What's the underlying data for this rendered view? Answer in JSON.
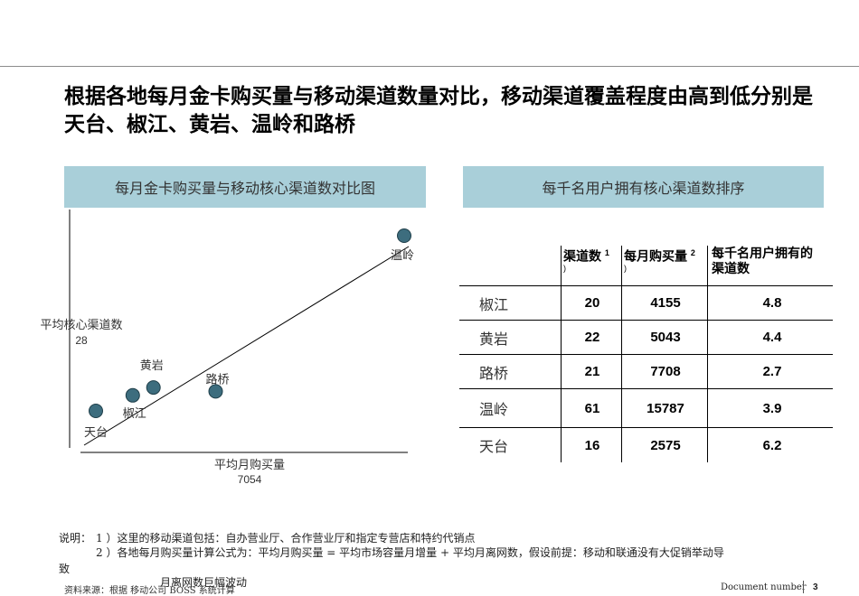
{
  "title": "根据各地每月金卡购买量与移动渠道数量对比，移动渠道覆盖程度由高到低分别是天台、椒江、黄岩、温岭和路桥",
  "left_panel": {
    "header": "每月金卡购买量与移动核心渠道数对比图"
  },
  "right_panel": {
    "header": "每千名用户拥有核心渠道数排序"
  },
  "chart_data": {
    "type": "scatter",
    "title": "每月金卡购买量与移动核心渠道数对比图",
    "xlabel": "平均月购买量",
    "xlabel_value": "7054",
    "ylabel": "平均核心渠道数",
    "ylabel_value": "28",
    "points": [
      {
        "label": "天台",
        "x": 2575,
        "y": 16
      },
      {
        "label": "椒江",
        "x": 4155,
        "y": 20
      },
      {
        "label": "黄岩",
        "x": 5043,
        "y": 22
      },
      {
        "label": "路桥",
        "x": 7708,
        "y": 21
      },
      {
        "label": "温岭",
        "x": 15787,
        "y": 61
      }
    ],
    "trendline": true
  },
  "table": {
    "headers": [
      "渠道数",
      "每月购买量",
      "每千名用户拥有的渠道数"
    ],
    "header_notes": [
      "1",
      "2"
    ],
    "header_note_paren": ")",
    "rows": [
      {
        "city": "椒江",
        "channels": "20",
        "monthly": "4155",
        "per_k": "4.8"
      },
      {
        "city": "黄岩",
        "channels": "22",
        "monthly": "5043",
        "per_k": "4.4"
      },
      {
        "city": "路桥",
        "channels": "21",
        "monthly": "7708",
        "per_k": "2.7"
      },
      {
        "city": "温岭",
        "channels": "61",
        "monthly": "15787",
        "per_k": "3.9"
      },
      {
        "city": "天台",
        "channels": "16",
        "monthly": "2575",
        "per_k": "6.2"
      }
    ]
  },
  "notes": {
    "prefix": "说明：",
    "line1": "1 ）这里的移动渠道包括：自办营业厅、合作营业厅和指定专营店和特约代销点",
    "line2": "2 ）各地每月购买量计算公式为：平均月购买量 = 平均市场容量月增量 + 平均月离网数，假设前提：移动和联通没有大促销举动导",
    "line3": "致",
    "line4": "月离网数巨幅波动"
  },
  "source": "资料来源：根据 移动公司 BOSS 系统计算",
  "footer": {
    "doc": "Document number",
    "page": "3"
  },
  "colors": {
    "header_bg": "#a9cfd9",
    "dot": "#3d6d7e"
  }
}
